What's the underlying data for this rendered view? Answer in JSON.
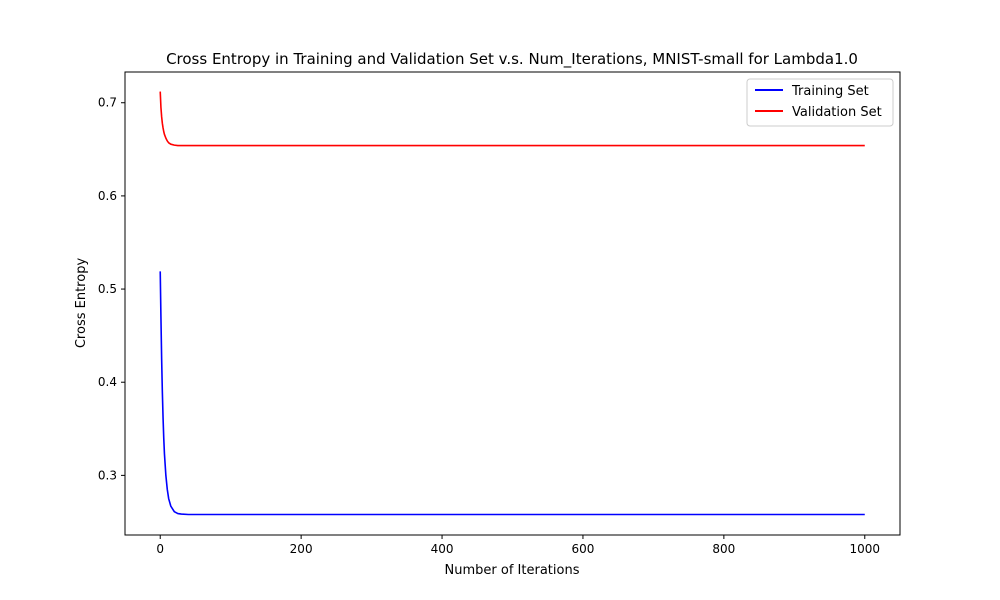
{
  "chart_data": {
    "type": "line",
    "title": "Cross Entropy in Training and Validation Set v.s. Num_Iterations, MNIST-small for Lambda1.0",
    "xlabel": "Number of Iterations",
    "ylabel": "Cross Entropy",
    "xlim": [
      -50,
      1050
    ],
    "ylim": [
      0.236,
      0.733
    ],
    "xticks": [
      0,
      200,
      400,
      600,
      800,
      1000
    ],
    "xtick_labels": [
      "0",
      "200",
      "400",
      "600",
      "800",
      "1000"
    ],
    "yticks": [
      0.3,
      0.4,
      0.5,
      0.6,
      0.7
    ],
    "ytick_labels": [
      "0.3",
      "0.4",
      "0.5",
      "0.6",
      "0.7"
    ],
    "grid": false,
    "legend_position": "top-right",
    "series": [
      {
        "name": "Training Set",
        "color": "#0000ff",
        "x": [
          0,
          1,
          2,
          3,
          4,
          5,
          6,
          8,
          10,
          12,
          15,
          20,
          25,
          30,
          40,
          60,
          100,
          200,
          400,
          600,
          800,
          1000
        ],
        "y": [
          0.519,
          0.47,
          0.425,
          0.39,
          0.362,
          0.34,
          0.323,
          0.3,
          0.285,
          0.275,
          0.267,
          0.261,
          0.259,
          0.2585,
          0.258,
          0.258,
          0.258,
          0.258,
          0.258,
          0.258,
          0.258,
          0.258
        ]
      },
      {
        "name": "Validation Set",
        "color": "#ff0000",
        "x": [
          0,
          1,
          2,
          3,
          4,
          5,
          6,
          8,
          10,
          12,
          15,
          20,
          25,
          30,
          40,
          60,
          100,
          200,
          400,
          600,
          800,
          1000
        ],
        "y": [
          0.712,
          0.695,
          0.685,
          0.678,
          0.673,
          0.669,
          0.666,
          0.662,
          0.659,
          0.657,
          0.6555,
          0.6545,
          0.654,
          0.654,
          0.654,
          0.654,
          0.654,
          0.654,
          0.654,
          0.654,
          0.654,
          0.654
        ]
      }
    ]
  }
}
